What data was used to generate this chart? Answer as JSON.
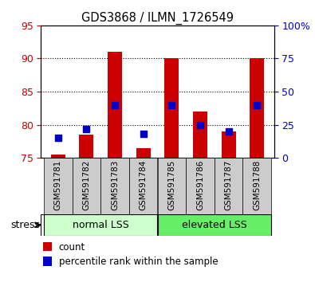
{
  "title": "GDS3868 / ILMN_1726549",
  "samples": [
    "GSM591781",
    "GSM591782",
    "GSM591783",
    "GSM591784",
    "GSM591785",
    "GSM591786",
    "GSM591787",
    "GSM591788"
  ],
  "counts": [
    75.5,
    78.5,
    91.0,
    76.5,
    90.0,
    82.0,
    79.0,
    90.0
  ],
  "percentiles": [
    15,
    22,
    40,
    18,
    40,
    25,
    20,
    40
  ],
  "ylim_left": [
    75,
    95
  ],
  "ylim_right": [
    0,
    100
  ],
  "yticks_left": [
    75,
    80,
    85,
    90,
    95
  ],
  "yticks_right": [
    0,
    25,
    50,
    75,
    100
  ],
  "group1_label": "normal LSS",
  "group2_label": "elevated LSS",
  "group1_indices": [
    0,
    1,
    2,
    3
  ],
  "group2_indices": [
    4,
    5,
    6,
    7
  ],
  "bar_color": "#cc0000",
  "dot_color": "#0000cc",
  "group1_color": "#ccffcc",
  "group2_color": "#66ee66",
  "xtick_bg_color": "#cccccc",
  "tick_label_color_left": "#cc0000",
  "tick_label_color_right": "#0000cc",
  "legend_count_label": "count",
  "legend_pct_label": "percentile rank within the sample",
  "stress_label": "stress",
  "bar_width": 0.5,
  "dot_size": 40
}
